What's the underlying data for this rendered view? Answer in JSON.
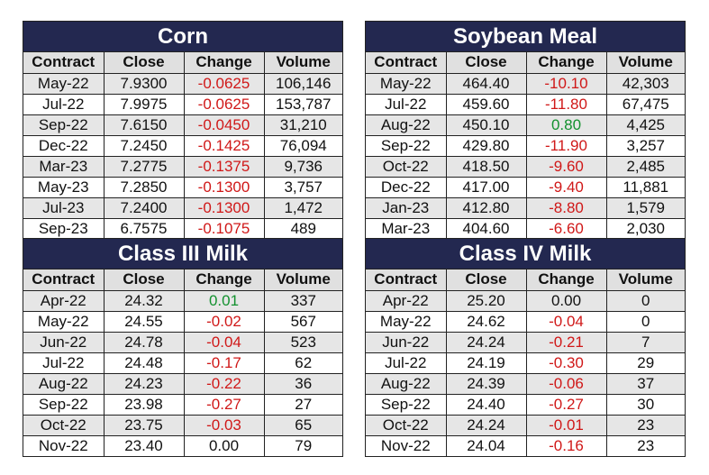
{
  "headers": [
    "Contract",
    "Close",
    "Change",
    "Volume"
  ],
  "colors": {
    "title_bg": "#232850",
    "negative": "#d01818",
    "positive": "#13912f",
    "stripe": "#e6e6e6"
  },
  "tables": [
    {
      "title": "Corn",
      "rows": [
        {
          "contract": "May-22",
          "close": "7.9300",
          "change": "-0.0625",
          "volume": "106,146"
        },
        {
          "contract": "Jul-22",
          "close": "7.9975",
          "change": "-0.0625",
          "volume": "153,787"
        },
        {
          "contract": "Sep-22",
          "close": "7.6150",
          "change": "-0.0450",
          "volume": "31,210"
        },
        {
          "contract": "Dec-22",
          "close": "7.2450",
          "change": "-0.1425",
          "volume": "76,094"
        },
        {
          "contract": "Mar-23",
          "close": "7.2775",
          "change": "-0.1375",
          "volume": "9,736"
        },
        {
          "contract": "May-23",
          "close": "7.2850",
          "change": "-0.1300",
          "volume": "3,757"
        },
        {
          "contract": "Jul-23",
          "close": "7.2400",
          "change": "-0.1300",
          "volume": "1,472"
        },
        {
          "contract": "Sep-23",
          "close": "6.7575",
          "change": "-0.1075",
          "volume": "489"
        }
      ]
    },
    {
      "title": "Soybean Meal",
      "rows": [
        {
          "contract": "May-22",
          "close": "464.40",
          "change": "-10.10",
          "volume": "42,303"
        },
        {
          "contract": "Jul-22",
          "close": "459.60",
          "change": "-11.80",
          "volume": "67,475"
        },
        {
          "contract": "Aug-22",
          "close": "450.10",
          "change": "0.80",
          "volume": "4,425"
        },
        {
          "contract": "Sep-22",
          "close": "429.80",
          "change": "-11.90",
          "volume": "3,257"
        },
        {
          "contract": "Oct-22",
          "close": "418.50",
          "change": "-9.60",
          "volume": "2,485"
        },
        {
          "contract": "Dec-22",
          "close": "417.00",
          "change": "-9.40",
          "volume": "11,881"
        },
        {
          "contract": "Jan-23",
          "close": "412.80",
          "change": "-8.80",
          "volume": "1,579"
        },
        {
          "contract": "Mar-23",
          "close": "404.60",
          "change": "-6.60",
          "volume": "2,030"
        }
      ]
    },
    {
      "title": "Class III Milk",
      "rows": [
        {
          "contract": "Apr-22",
          "close": "24.32",
          "change": "0.01",
          "volume": "337"
        },
        {
          "contract": "May-22",
          "close": "24.55",
          "change": "-0.02",
          "volume": "567"
        },
        {
          "contract": "Jun-22",
          "close": "24.78",
          "change": "-0.04",
          "volume": "523"
        },
        {
          "contract": "Jul-22",
          "close": "24.48",
          "change": "-0.17",
          "volume": "62"
        },
        {
          "contract": "Aug-22",
          "close": "24.23",
          "change": "-0.22",
          "volume": "36"
        },
        {
          "contract": "Sep-22",
          "close": "23.98",
          "change": "-0.27",
          "volume": "27"
        },
        {
          "contract": "Oct-22",
          "close": "23.75",
          "change": "-0.03",
          "volume": "65"
        },
        {
          "contract": "Nov-22",
          "close": "23.40",
          "change": "0.00",
          "volume": "79"
        }
      ]
    },
    {
      "title": "Class IV Milk",
      "rows": [
        {
          "contract": "Apr-22",
          "close": "25.20",
          "change": "0.00",
          "volume": "0"
        },
        {
          "contract": "May-22",
          "close": "24.62",
          "change": "-0.04",
          "volume": "0"
        },
        {
          "contract": "Jun-22",
          "close": "24.24",
          "change": "-0.21",
          "volume": "7"
        },
        {
          "contract": "Jul-22",
          "close": "24.19",
          "change": "-0.30",
          "volume": "29"
        },
        {
          "contract": "Aug-22",
          "close": "24.39",
          "change": "-0.06",
          "volume": "37"
        },
        {
          "contract": "Sep-22",
          "close": "24.40",
          "change": "-0.27",
          "volume": "30"
        },
        {
          "contract": "Oct-22",
          "close": "24.24",
          "change": "-0.01",
          "volume": "23"
        },
        {
          "contract": "Nov-22",
          "close": "24.04",
          "change": "-0.16",
          "volume": "23"
        }
      ]
    }
  ]
}
